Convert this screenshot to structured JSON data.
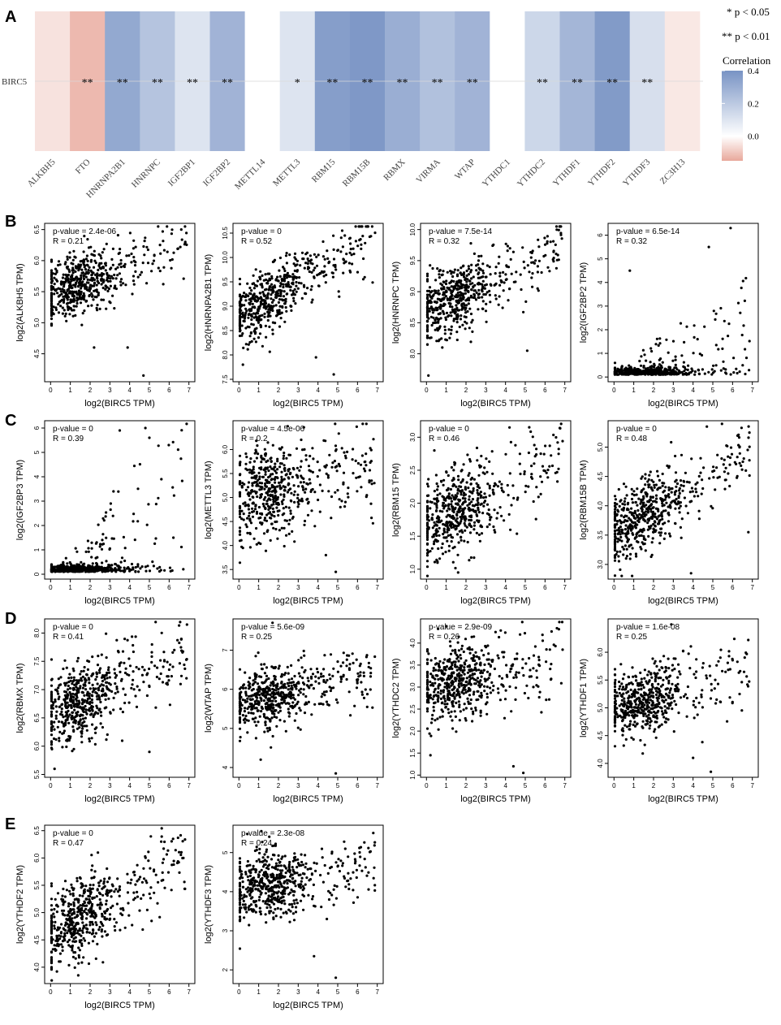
{
  "panel_labels": [
    "A",
    "B",
    "C",
    "D",
    "E"
  ],
  "chart_data": [
    {
      "type": "heatmap",
      "panel": "A",
      "row_label": "BIRC5",
      "categories": [
        "ALKBH5",
        "FTO",
        "HNRNPA2B1",
        "HNRNPC",
        "IGF2BP1",
        "IGF2BP2",
        "METTL14",
        "METTL3",
        "RBM15",
        "RBM15B",
        "RBMX",
        "VIRMA",
        "WTAP",
        "YTHDC1",
        "YTHDC2",
        "YTHDF1",
        "YTHDF2",
        "YTHDF3",
        "ZC3H13"
      ],
      "values": [
        -0.05,
        -0.12,
        0.32,
        0.22,
        0.1,
        0.28,
        0.0,
        0.1,
        0.36,
        0.38,
        0.3,
        0.23,
        0.28,
        0.0,
        0.15,
        0.27,
        0.37,
        0.12,
        -0.04
      ],
      "significance": [
        "",
        "**",
        "**",
        "**",
        "**",
        "**",
        "",
        "*",
        "**",
        "**",
        "**",
        "**",
        "**",
        "",
        "**",
        "**",
        "**",
        "**",
        ""
      ],
      "legend": {
        "sig1": "* p < 0.05",
        "sig2": "** p < 0.01",
        "title": "Correlation",
        "ticks": [
          0.4,
          0.2,
          0.0
        ],
        "tick_labels": [
          "0.4",
          "0.2",
          "0.0"
        ],
        "range": [
          -0.15,
          0.4
        ]
      },
      "colors": {
        "negative": "#e8a89b",
        "neutral": "#ffffff",
        "positive": "#7893c4",
        "missing": "#ffffff"
      }
    },
    {
      "type": "scatter",
      "panel": "B",
      "xlabel": "log2(BIRC5 TPM)",
      "ylabel": "log2(ALKBH5 TPM)",
      "pvalue": "p-value = 2.4e-06",
      "r": "R = 0.21",
      "xlim": [
        -0.3,
        7.3
      ],
      "ylim": [
        4.05,
        6.6
      ],
      "yticks": [
        4.5,
        5.0,
        5.5,
        6.0,
        6.5
      ],
      "ytick_labels": [
        "4.5",
        "5.0",
        "5.5",
        "6.0",
        "6.5"
      ],
      "xticks": [
        0,
        1,
        2,
        3,
        4,
        5,
        6,
        7
      ],
      "xtick_labels": [
        "0",
        "1",
        "2",
        "3",
        "4",
        "5",
        "6",
        "7"
      ],
      "sim": {
        "seed": 11,
        "n": 560,
        "base": 5.45,
        "slope": 0.12,
        "sd": 0.24,
        "outliers": [
          [
            2.2,
            4.6
          ],
          [
            4.7,
            4.15
          ],
          [
            3.9,
            4.6
          ]
        ]
      }
    },
    {
      "type": "scatter",
      "panel": "B",
      "xlabel": "log2(BIRC5 TPM)",
      "ylabel": "log2(HNRNPA2B1 TPM)",
      "pvalue": "p-value = 0",
      "r": "R = 0.52",
      "xlim": [
        -0.3,
        7.3
      ],
      "ylim": [
        7.45,
        10.7
      ],
      "yticks": [
        7.5,
        8.0,
        8.5,
        9.0,
        9.5,
        10.0,
        10.5
      ],
      "ytick_labels": [
        "7.5",
        "8.0",
        "8.5",
        "9.0",
        "9.5",
        "10.0",
        "10.5"
      ],
      "xticks": [
        0,
        1,
        2,
        3,
        4,
        5,
        6,
        7
      ],
      "xtick_labels": [
        "0",
        "1",
        "2",
        "3",
        "4",
        "5",
        "6",
        "7"
      ],
      "sim": {
        "seed": 23,
        "n": 560,
        "base": 8.75,
        "slope": 0.26,
        "sd": 0.3,
        "outliers": [
          [
            0.2,
            7.8
          ],
          [
            4.8,
            7.6
          ],
          [
            3.9,
            7.95
          ]
        ]
      }
    },
    {
      "type": "scatter",
      "panel": "B",
      "xlabel": "log2(BIRC5 TPM)",
      "ylabel": "log2(HNRNPC TPM)",
      "pvalue": "p-value = 7.5e-14",
      "r": "R = 0.32",
      "xlim": [
        -0.3,
        7.3
      ],
      "ylim": [
        7.55,
        10.1
      ],
      "yticks": [
        8.0,
        8.5,
        9.0,
        9.5,
        10.0
      ],
      "ytick_labels": [
        "8.0",
        "8.5",
        "9.0",
        "9.5",
        "10.0"
      ],
      "xticks": [
        0,
        1,
        2,
        3,
        4,
        5,
        6,
        7
      ],
      "xtick_labels": [
        "0",
        "1",
        "2",
        "3",
        "4",
        "5",
        "6",
        "7"
      ],
      "sim": {
        "seed": 37,
        "n": 560,
        "base": 8.72,
        "slope": 0.13,
        "sd": 0.28,
        "outliers": [
          [
            0.1,
            7.65
          ],
          [
            0.8,
            8.1
          ],
          [
            5.1,
            8.05
          ]
        ]
      }
    },
    {
      "type": "scatter",
      "panel": "B",
      "xlabel": "log2(BIRC5 TPM)",
      "ylabel": "log2(IGF2BP2 TPM)",
      "pvalue": "p-value = 6.5e-14",
      "r": "R = 0.32",
      "xlim": [
        -0.3,
        7.3
      ],
      "ylim": [
        -0.2,
        6.5
      ],
      "yticks": [
        0,
        1,
        2,
        3,
        4,
        5,
        6
      ],
      "ytick_labels": [
        "0",
        "1",
        "2",
        "3",
        "4",
        "5",
        "6"
      ],
      "xticks": [
        0,
        1,
        2,
        3,
        4,
        5,
        6,
        7
      ],
      "xtick_labels": [
        "0",
        "1",
        "2",
        "3",
        "4",
        "5",
        "6",
        "7"
      ],
      "sim": {
        "seed": 41,
        "n": 560,
        "skew": true,
        "scale": 0.55,
        "outliers": [
          [
            5.9,
            6.3
          ],
          [
            4.8,
            5.5
          ],
          [
            0.8,
            4.5
          ]
        ]
      }
    },
    {
      "type": "scatter",
      "panel": "C",
      "xlabel": "log2(BIRC5 TPM)",
      "ylabel": "log2(IGF2BP3 TPM)",
      "pvalue": "p-value = 0",
      "r": "R = 0.39",
      "xlim": [
        -0.3,
        7.3
      ],
      "ylim": [
        -0.2,
        6.3
      ],
      "yticks": [
        0,
        1,
        2,
        3,
        4,
        5,
        6
      ],
      "ytick_labels": [
        "0",
        "1",
        "2",
        "3",
        "4",
        "5",
        "6"
      ],
      "xticks": [
        0,
        1,
        2,
        3,
        4,
        5,
        6,
        7
      ],
      "xtick_labels": [
        "0",
        "1",
        "2",
        "3",
        "4",
        "5",
        "6",
        "7"
      ],
      "sim": {
        "seed": 53,
        "n": 560,
        "skew": true,
        "scale": 0.85,
        "outliers": [
          [
            4.8,
            6.0
          ],
          [
            3.5,
            5.9
          ],
          [
            5.0,
            5.6
          ]
        ]
      }
    },
    {
      "type": "scatter",
      "panel": "C",
      "xlabel": "log2(BIRC5 TPM)",
      "ylabel": "log2(METTL3 TPM)",
      "pvalue": "p-value = 4.5e-06",
      "r": "R = 0.2",
      "xlim": [
        -0.3,
        7.3
      ],
      "ylim": [
        3.3,
        6.6
      ],
      "yticks": [
        3.5,
        4.0,
        4.5,
        5.0,
        5.5,
        6.0
      ],
      "ytick_labels": [
        "3.5",
        "4.0",
        "4.5",
        "5.0",
        "5.5",
        "6.0"
      ],
      "xticks": [
        0,
        1,
        2,
        3,
        4,
        5,
        6,
        7
      ],
      "xtick_labels": [
        "0",
        "1",
        "2",
        "3",
        "4",
        "5",
        "6",
        "7"
      ],
      "sim": {
        "seed": 67,
        "n": 560,
        "base": 4.95,
        "slope": 0.1,
        "sd": 0.45,
        "outliers": [
          [
            4.9,
            3.45
          ],
          [
            4.4,
            3.8
          ],
          [
            0.2,
            3.95
          ]
        ]
      }
    },
    {
      "type": "scatter",
      "panel": "C",
      "xlabel": "log2(BIRC5 TPM)",
      "ylabel": "log2(RBM15 TPM)",
      "pvalue": "p-value = 0",
      "r": "R = 0.46",
      "xlim": [
        -0.3,
        7.3
      ],
      "ylim": [
        0.85,
        3.25
      ],
      "yticks": [
        1.0,
        1.5,
        2.0,
        2.5,
        3.0
      ],
      "ytick_labels": [
        "1.0",
        "1.5",
        "2.0",
        "2.5",
        "3.0"
      ],
      "xticks": [
        0,
        1,
        2,
        3,
        4,
        5,
        6,
        7
      ],
      "xtick_labels": [
        "0",
        "1",
        "2",
        "3",
        "4",
        "5",
        "6",
        "7"
      ],
      "sim": {
        "seed": 71,
        "n": 560,
        "base": 1.6,
        "slope": 0.17,
        "sd": 0.33,
        "outliers": [
          [
            1.6,
            0.95
          ],
          [
            5.2,
            3.15
          ],
          [
            0.4,
            2.8
          ]
        ]
      }
    },
    {
      "type": "scatter",
      "panel": "C",
      "xlabel": "log2(BIRC5 TPM)",
      "ylabel": "log2(RBM15B TPM)",
      "pvalue": "p-value = 0",
      "r": "R = 0.48",
      "xlim": [
        -0.3,
        7.3
      ],
      "ylim": [
        2.75,
        5.45
      ],
      "yticks": [
        3.0,
        3.5,
        4.0,
        4.5,
        5.0
      ],
      "ytick_labels": [
        "3.0",
        "3.5",
        "4.0",
        "4.5",
        "5.0"
      ],
      "xticks": [
        0,
        1,
        2,
        3,
        4,
        5,
        6,
        7
      ],
      "xtick_labels": [
        "0",
        "1",
        "2",
        "3",
        "4",
        "5",
        "6",
        "7"
      ],
      "sim": {
        "seed": 83,
        "n": 560,
        "base": 3.55,
        "slope": 0.2,
        "sd": 0.3,
        "outliers": [
          [
            3.9,
            2.85
          ],
          [
            6.8,
            3.55
          ],
          [
            4.7,
            5.35
          ]
        ]
      }
    },
    {
      "type": "scatter",
      "panel": "D",
      "xlabel": "log2(BIRC5 TPM)",
      "ylabel": "log2(RBMX TPM)",
      "pvalue": "p-value = 0",
      "r": "R = 0.41",
      "xlim": [
        -0.3,
        7.3
      ],
      "ylim": [
        5.45,
        8.25
      ],
      "yticks": [
        5.5,
        6.0,
        6.5,
        7.0,
        7.5,
        8.0
      ],
      "ytick_labels": [
        "5.5",
        "6.0",
        "6.5",
        "7.0",
        "7.5",
        "8.0"
      ],
      "xticks": [
        0,
        1,
        2,
        3,
        4,
        5,
        6,
        7
      ],
      "xtick_labels": [
        "0",
        "1",
        "2",
        "3",
        "4",
        "5",
        "6",
        "7"
      ],
      "sim": {
        "seed": 97,
        "n": 560,
        "base": 6.55,
        "slope": 0.16,
        "sd": 0.35,
        "outliers": [
          [
            0.2,
            5.6
          ],
          [
            5.0,
            5.9
          ],
          [
            6.9,
            8.15
          ]
        ]
      }
    },
    {
      "type": "scatter",
      "panel": "D",
      "xlabel": "log2(BIRC5 TPM)",
      "ylabel": "log2(WTAP TPM)",
      "pvalue": "p-value = 5.6e-09",
      "r": "R = 0.25",
      "xlim": [
        -0.3,
        7.3
      ],
      "ylim": [
        3.75,
        7.8
      ],
      "yticks": [
        4,
        5,
        6,
        7
      ],
      "ytick_labels": [
        "4",
        "5",
        "6",
        "7"
      ],
      "xticks": [
        0,
        1,
        2,
        3,
        4,
        5,
        6,
        7
      ],
      "xtick_labels": [
        "0",
        "1",
        "2",
        "3",
        "4",
        "5",
        "6",
        "7"
      ],
      "sim": {
        "seed": 101,
        "n": 560,
        "base": 5.6,
        "slope": 0.12,
        "sd": 0.38,
        "outliers": [
          [
            4.9,
            3.85
          ],
          [
            1.1,
            4.2
          ],
          [
            1.7,
            7.7
          ]
        ]
      }
    },
    {
      "type": "scatter",
      "panel": "D",
      "xlabel": "log2(BIRC5 TPM)",
      "ylabel": "log2(YTHDC2 TPM)",
      "pvalue": "p-value = 2.9e-09",
      "r": "R = 0.26",
      "xlim": [
        -0.3,
        7.3
      ],
      "ylim": [
        0.95,
        4.55
      ],
      "yticks": [
        1.0,
        1.5,
        2.0,
        2.5,
        3.0,
        3.5,
        4.0
      ],
      "ytick_labels": [
        "1.0",
        "1.5",
        "2.0",
        "2.5",
        "3.0",
        "3.5",
        "4.0"
      ],
      "xticks": [
        0,
        1,
        2,
        3,
        4,
        5,
        6,
        7
      ],
      "xtick_labels": [
        "0",
        "1",
        "2",
        "3",
        "4",
        "5",
        "6",
        "7"
      ],
      "sim": {
        "seed": 113,
        "n": 560,
        "base": 2.95,
        "slope": 0.1,
        "sd": 0.45,
        "outliers": [
          [
            4.4,
            1.2
          ],
          [
            4.9,
            1.05
          ],
          [
            0.2,
            1.45
          ]
        ]
      }
    },
    {
      "type": "scatter",
      "panel": "D",
      "xlabel": "log2(BIRC5 TPM)",
      "ylabel": "log2(YTHDF1 TPM)",
      "pvalue": "p-value = 1.6e-08",
      "r": "R = 0.25",
      "xlim": [
        -0.3,
        7.3
      ],
      "ylim": [
        3.75,
        6.6
      ],
      "yticks": [
        4.0,
        4.5,
        5.0,
        5.5,
        6.0
      ],
      "ytick_labels": [
        "4.0",
        "4.5",
        "5.0",
        "5.5",
        "6.0"
      ],
      "xticks": [
        0,
        1,
        2,
        3,
        4,
        5,
        6,
        7
      ],
      "xtick_labels": [
        "0",
        "1",
        "2",
        "3",
        "4",
        "5",
        "6",
        "7"
      ],
      "sim": {
        "seed": 127,
        "n": 560,
        "base": 5.0,
        "slope": 0.1,
        "sd": 0.3,
        "outliers": [
          [
            4.9,
            3.85
          ],
          [
            4.0,
            4.1
          ],
          [
            2.9,
            6.5
          ]
        ]
      }
    },
    {
      "type": "scatter",
      "panel": "E",
      "xlabel": "log2(BIRC5 TPM)",
      "ylabel": "log2(YTHDF2 TPM)",
      "pvalue": "p-value = 0",
      "r": "R = 0.47",
      "xlim": [
        -0.3,
        7.3
      ],
      "ylim": [
        3.7,
        6.6
      ],
      "yticks": [
        4.0,
        4.5,
        5.0,
        5.5,
        6.0,
        6.5
      ],
      "ytick_labels": [
        "4.0",
        "4.5",
        "5.0",
        "5.5",
        "6.0",
        "6.5"
      ],
      "xticks": [
        0,
        1,
        2,
        3,
        4,
        5,
        6,
        7
      ],
      "xtick_labels": [
        "0",
        "1",
        "2",
        "3",
        "4",
        "5",
        "6",
        "7"
      ],
      "sim": {
        "seed": 131,
        "n": 560,
        "base": 4.6,
        "slope": 0.2,
        "sd": 0.35,
        "outliers": [
          [
            6.2,
            6.35
          ],
          [
            5.6,
            6.3
          ],
          [
            1.4,
            3.85
          ]
        ]
      }
    },
    {
      "type": "scatter",
      "panel": "E",
      "xlabel": "log2(BIRC5 TPM)",
      "ylabel": "log2(YTHDF3 TPM)",
      "pvalue": "p-value = 2.3e-08",
      "r": "R = 0.24",
      "xlim": [
        -0.3,
        7.3
      ],
      "ylim": [
        1.65,
        5.7
      ],
      "yticks": [
        2,
        3,
        4,
        5
      ],
      "ytick_labels": [
        "2",
        "3",
        "4",
        "5"
      ],
      "xticks": [
        0,
        1,
        2,
        3,
        4,
        5,
        6,
        7
      ],
      "xtick_labels": [
        "0",
        "1",
        "2",
        "3",
        "4",
        "5",
        "6",
        "7"
      ],
      "sim": {
        "seed": 139,
        "n": 560,
        "base": 4.0,
        "slope": 0.1,
        "sd": 0.45,
        "outliers": [
          [
            4.9,
            1.8
          ],
          [
            3.8,
            2.35
          ],
          [
            6.8,
            5.5
          ]
        ]
      }
    }
  ]
}
